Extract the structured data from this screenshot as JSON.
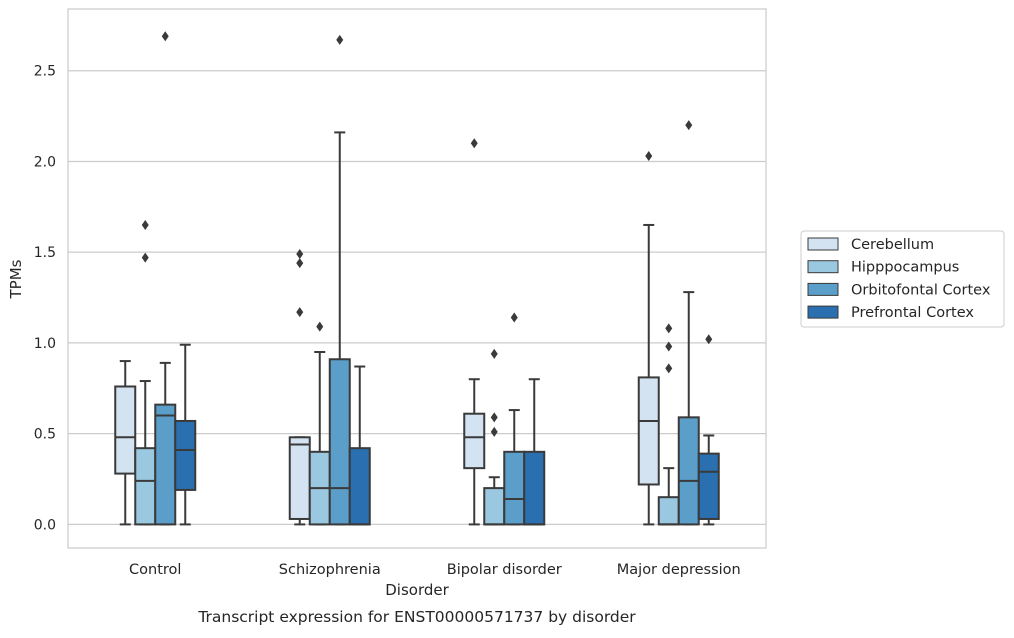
{
  "chart_data": {
    "type": "box",
    "title": "Transcript expression for ENST00000571737 by disorder",
    "xlabel": "Disorder",
    "ylabel": "TPMs",
    "ylim": [
      -0.13,
      2.84
    ],
    "yticks": [
      0.0,
      0.5,
      1.0,
      1.5,
      2.0,
      2.5
    ],
    "ytick_labels": [
      "0.0",
      "0.5",
      "1.0",
      "1.5",
      "2.0",
      "2.5"
    ],
    "grid": "horizontal",
    "legend_position": "right",
    "categories": [
      "Control",
      "Schizophrenia",
      "Bipolar disorder",
      "Major depression"
    ],
    "series": [
      {
        "name": "Cerebellum",
        "color": "#d3e3f2",
        "boxes": [
          {
            "whisker_low": 0.0,
            "q1": 0.28,
            "median": 0.48,
            "q3": 0.76,
            "whisker_high": 0.9,
            "outliers": []
          },
          {
            "whisker_low": 0.0,
            "q1": 0.03,
            "median": 0.44,
            "q3": 0.48,
            "whisker_high": 0.48,
            "outliers": [
              1.49,
              1.44,
              1.17
            ]
          },
          {
            "whisker_low": 0.0,
            "q1": 0.31,
            "median": 0.48,
            "q3": 0.61,
            "whisker_high": 0.8,
            "outliers": [
              2.1
            ]
          },
          {
            "whisker_low": 0.0,
            "q1": 0.22,
            "median": 0.57,
            "q3": 0.81,
            "whisker_high": 1.65,
            "outliers": [
              2.03
            ]
          }
        ]
      },
      {
        "name": "Hipppocampus",
        "color": "#9ac8e0",
        "boxes": [
          {
            "whisker_low": 0.0,
            "q1": 0.0,
            "median": 0.24,
            "q3": 0.42,
            "whisker_high": 0.79,
            "outliers": [
              1.65,
              1.47
            ]
          },
          {
            "whisker_low": 0.0,
            "q1": 0.0,
            "median": 0.2,
            "q3": 0.4,
            "whisker_high": 0.95,
            "outliers": [
              1.09
            ]
          },
          {
            "whisker_low": 0.0,
            "q1": 0.0,
            "median": 0.0,
            "q3": 0.2,
            "whisker_high": 0.26,
            "outliers": [
              0.94,
              0.59,
              0.51
            ]
          },
          {
            "whisker_low": 0.0,
            "q1": 0.0,
            "median": 0.0,
            "q3": 0.15,
            "whisker_high": 0.31,
            "outliers": [
              1.08,
              0.98,
              0.86
            ]
          }
        ]
      },
      {
        "name": "Orbitofontal Cortex",
        "color": "#5a9ec9",
        "boxes": [
          {
            "whisker_low": 0.0,
            "q1": 0.0,
            "median": 0.6,
            "q3": 0.66,
            "whisker_high": 0.89,
            "outliers": [
              2.69
            ]
          },
          {
            "whisker_low": 0.0,
            "q1": 0.0,
            "median": 0.2,
            "q3": 0.91,
            "whisker_high": 2.16,
            "outliers": [
              2.67
            ]
          },
          {
            "whisker_low": 0.0,
            "q1": 0.0,
            "median": 0.14,
            "q3": 0.4,
            "whisker_high": 0.63,
            "outliers": [
              1.14
            ]
          },
          {
            "whisker_low": 0.0,
            "q1": 0.0,
            "median": 0.24,
            "q3": 0.59,
            "whisker_high": 1.28,
            "outliers": [
              2.2
            ]
          }
        ]
      },
      {
        "name": "Prefrontal Cortex",
        "color": "#2a6fb0",
        "boxes": [
          {
            "whisker_low": 0.0,
            "q1": 0.19,
            "median": 0.41,
            "q3": 0.57,
            "whisker_high": 0.99,
            "outliers": []
          },
          {
            "whisker_low": 0.0,
            "q1": 0.0,
            "median": 0.0,
            "q3": 0.42,
            "whisker_high": 0.87,
            "outliers": []
          },
          {
            "whisker_low": 0.0,
            "q1": 0.0,
            "median": 0.0,
            "q3": 0.4,
            "whisker_high": 0.8,
            "outliers": []
          },
          {
            "whisker_low": 0.0,
            "q1": 0.03,
            "median": 0.29,
            "q3": 0.39,
            "whisker_high": 0.49,
            "outliers": [
              1.02
            ]
          }
        ]
      }
    ]
  }
}
